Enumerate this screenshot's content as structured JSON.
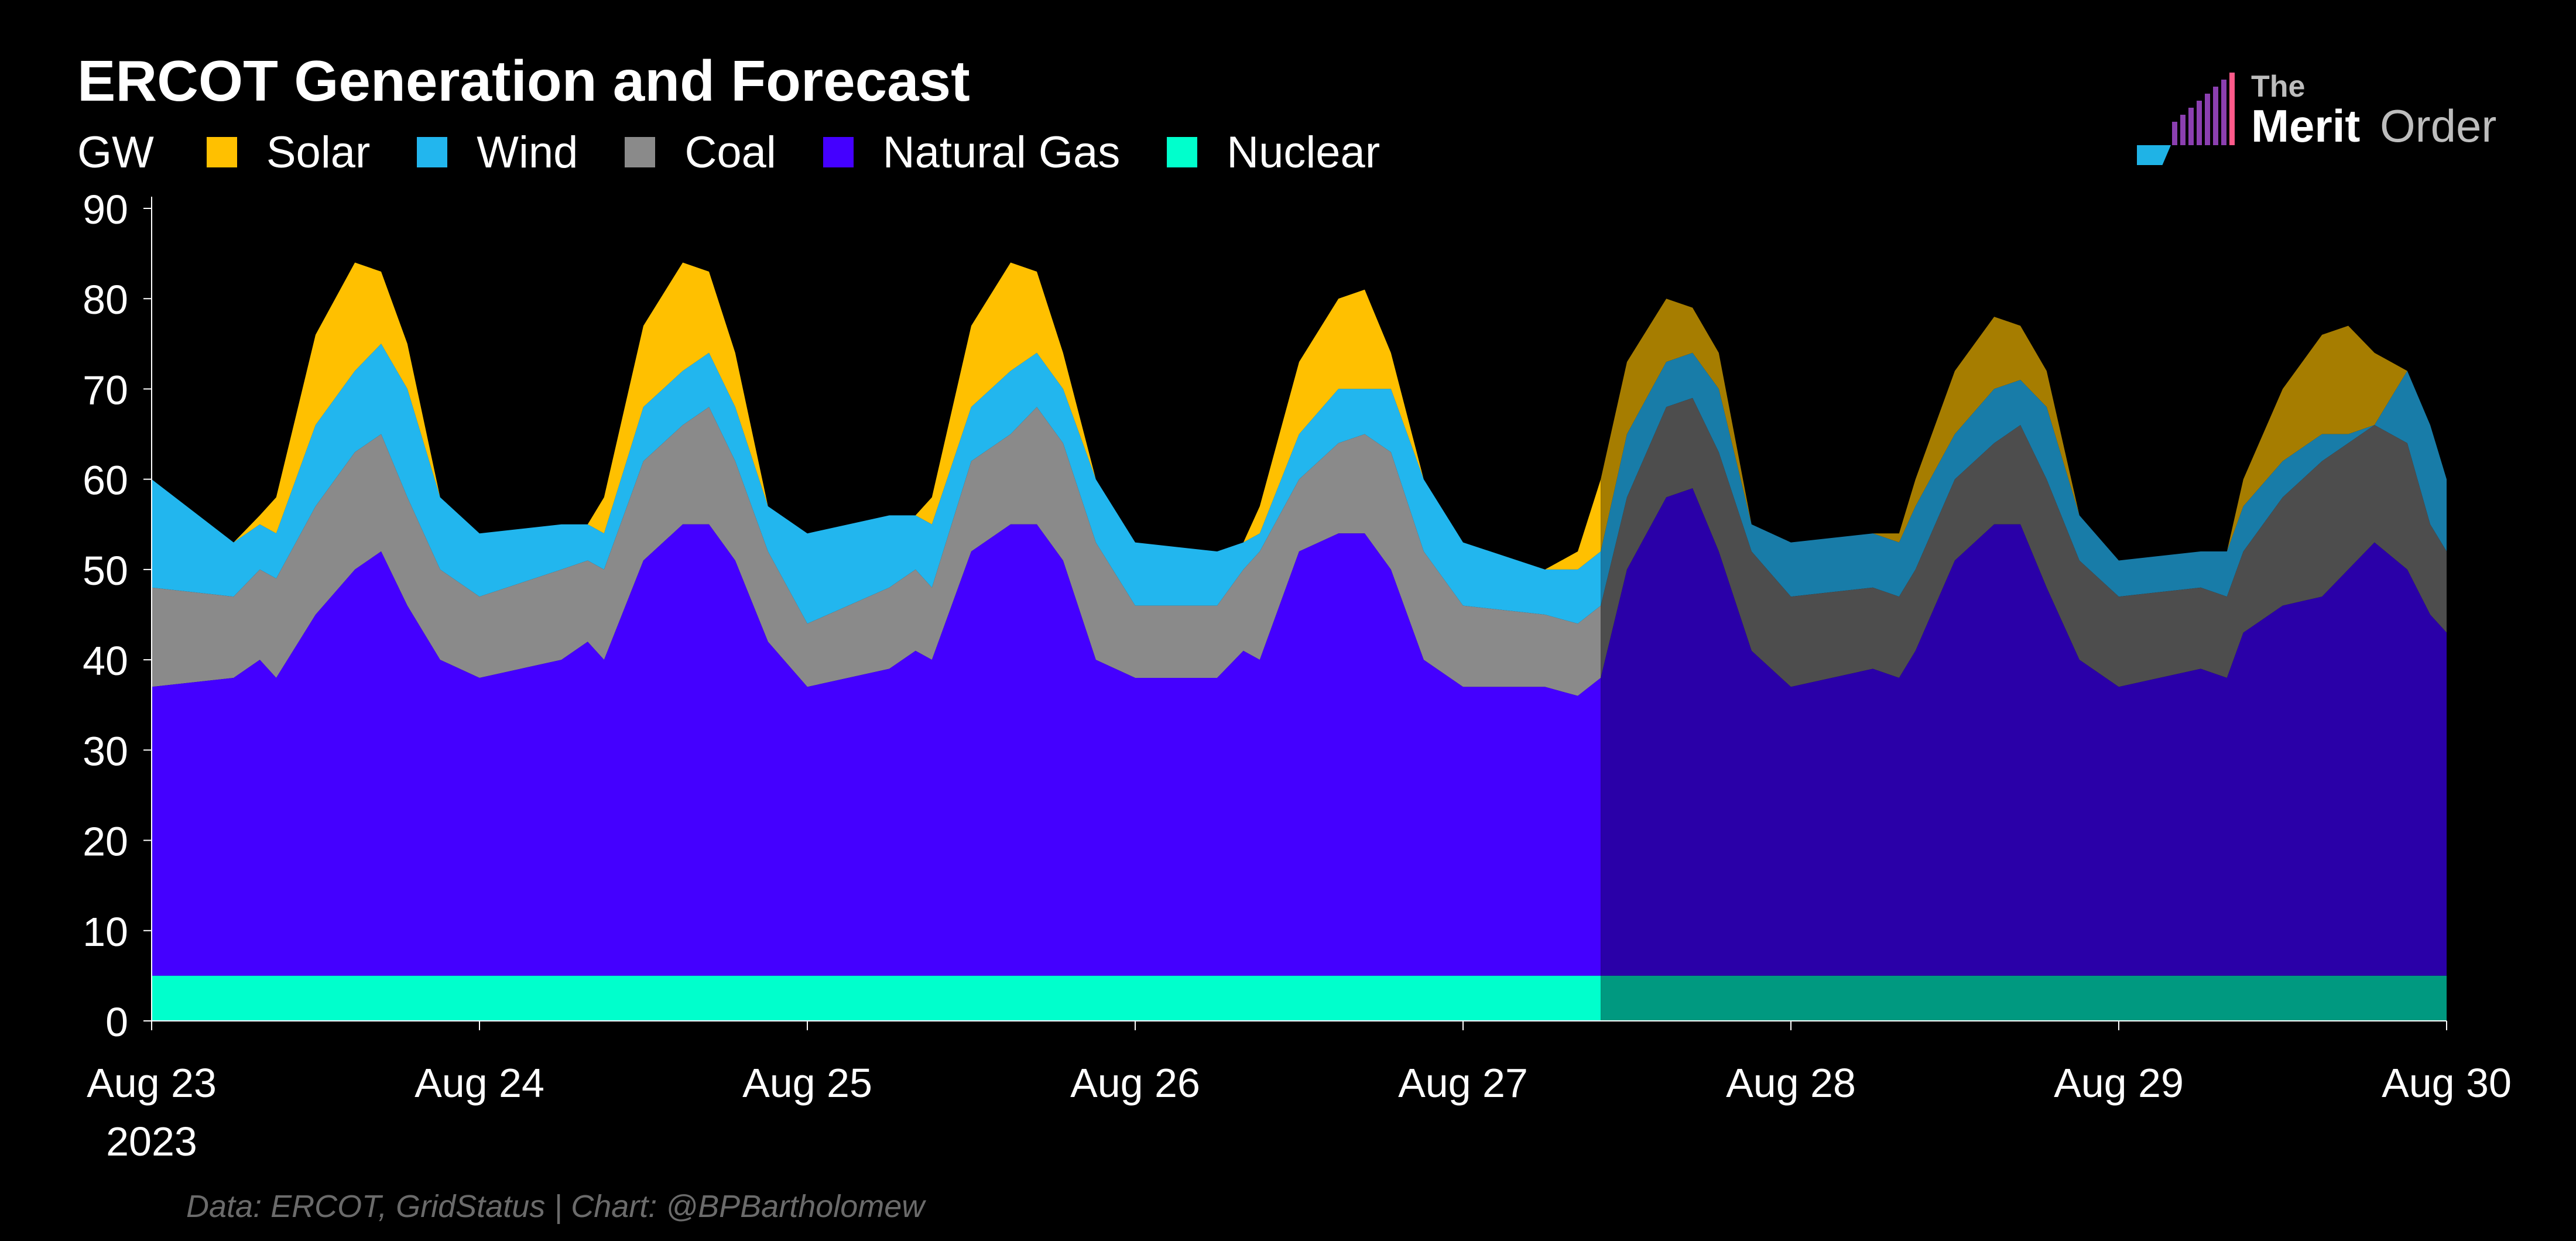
{
  "chart_data": {
    "type": "area",
    "title": "ERCOT Generation and Forecast",
    "ylabel": "GW",
    "ylim": [
      0,
      90
    ],
    "y_ticks": [
      "0",
      "10",
      "20",
      "30",
      "40",
      "50",
      "60",
      "70",
      "80",
      "90"
    ],
    "x_ticks": [
      "Aug 23",
      "Aug 24",
      "Aug 25",
      "Aug 26",
      "Aug 27",
      "Aug 28",
      "Aug 29",
      "Aug 30"
    ],
    "year_label": "2023",
    "xlim_days": [
      0,
      7
    ],
    "forecast_start_day": 4.42,
    "series": [
      {
        "name": "Nuclear",
        "color": "#00ffcc",
        "forecast_color": "#009980"
      },
      {
        "name": "Natural Gas",
        "color": "#4400ff",
        "forecast_color": "#2a00a8"
      },
      {
        "name": "Coal",
        "color": "#8a8a8a",
        "forecast_color": "#4d4d4d"
      },
      {
        "name": "Wind",
        "color": "#22b6ee",
        "forecast_color": "#187ca8"
      },
      {
        "name": "Solar",
        "color": "#ffc000",
        "forecast_color": "#a67d00"
      }
    ],
    "stacked_tops": {
      "days": [
        0,
        0.25,
        0.33,
        0.38,
        0.5,
        0.62,
        0.7,
        0.78,
        0.88,
        1.0,
        1.25,
        1.33,
        1.38,
        1.5,
        1.62,
        1.7,
        1.78,
        1.88,
        2.0,
        2.25,
        2.33,
        2.38,
        2.5,
        2.62,
        2.7,
        2.78,
        2.88,
        3.0,
        3.25,
        3.33,
        3.38,
        3.5,
        3.62,
        3.7,
        3.78,
        3.88,
        4.0,
        4.25,
        4.35,
        4.42,
        4.5,
        4.62,
        4.7,
        4.78,
        4.88,
        5.0,
        5.25,
        5.33,
        5.38,
        5.5,
        5.62,
        5.7,
        5.78,
        5.88,
        6.0,
        6.25,
        6.33,
        6.38,
        6.5,
        6.62,
        6.7,
        6.78,
        6.88,
        6.95,
        7.0
      ],
      "nuclear": [
        5,
        5,
        5,
        5,
        5,
        5,
        5,
        5,
        5,
        5,
        5,
        5,
        5,
        5,
        5,
        5,
        5,
        5,
        5,
        5,
        5,
        5,
        5,
        5,
        5,
        5,
        5,
        5,
        5,
        5,
        5,
        5,
        5,
        5,
        5,
        5,
        5,
        5,
        5,
        5,
        5,
        5,
        5,
        5,
        5,
        5,
        5,
        5,
        5,
        5,
        5,
        5,
        5,
        5,
        5,
        5,
        5,
        5,
        5,
        5,
        5,
        5,
        5,
        5,
        5
      ],
      "gas": [
        37,
        38,
        40,
        38,
        45,
        50,
        52,
        46,
        40,
        38,
        40,
        42,
        40,
        51,
        55,
        55,
        51,
        42,
        37,
        39,
        41,
        40,
        52,
        55,
        55,
        51,
        40,
        38,
        38,
        41,
        40,
        52,
        54,
        54,
        50,
        40,
        37,
        37,
        36,
        38,
        50,
        58,
        59,
        52,
        41,
        37,
        39,
        38,
        41,
        51,
        55,
        55,
        48,
        40,
        37,
        39,
        38,
        43,
        46,
        47,
        50,
        53,
        50,
        45,
        43
      ],
      "coal": [
        48,
        47,
        50,
        49,
        57,
        63,
        65,
        58,
        50,
        47,
        50,
        51,
        50,
        62,
        66,
        68,
        62,
        52,
        44,
        48,
        50,
        48,
        62,
        65,
        68,
        64,
        53,
        46,
        46,
        50,
        52,
        60,
        64,
        65,
        63,
        52,
        46,
        45,
        44,
        46,
        58,
        68,
        69,
        63,
        52,
        47,
        48,
        47,
        50,
        60,
        64,
        66,
        60,
        51,
        47,
        48,
        47,
        52,
        58,
        62,
        64,
        66,
        64,
        55,
        52
      ],
      "wind": [
        60,
        53,
        55,
        54,
        66,
        72,
        75,
        70,
        58,
        54,
        55,
        55,
        54,
        68,
        72,
        74,
        68,
        57,
        54,
        56,
        56,
        55,
        68,
        72,
        74,
        70,
        60,
        53,
        52,
        53,
        54,
        65,
        70,
        70,
        70,
        60,
        53,
        50,
        50,
        52,
        65,
        73,
        74,
        70,
        55,
        53,
        54,
        53,
        57,
        65,
        70,
        71,
        68,
        56,
        51,
        52,
        52,
        57,
        62,
        65,
        65,
        66,
        72,
        66,
        60
      ],
      "solar": [
        60,
        53,
        56,
        58,
        76,
        84,
        83,
        75,
        58,
        54,
        55,
        55,
        58,
        77,
        84,
        83,
        74,
        57,
        54,
        56,
        56,
        58,
        77,
        84,
        83,
        74,
        60,
        53,
        52,
        53,
        57,
        73,
        80,
        81,
        74,
        60,
        53,
        50,
        52,
        60,
        73,
        80,
        79,
        74,
        55,
        53,
        54,
        54,
        60,
        72,
        78,
        77,
        72,
        56,
        51,
        52,
        52,
        60,
        70,
        76,
        77,
        74,
        72,
        66,
        60
      ]
    },
    "grid": false,
    "legend_position": "top-left"
  },
  "logo": {
    "line1": "The",
    "line2a": "Merit",
    "line2b": "Order"
  },
  "source_text": "Data: ERCOT, GridStatus | Chart: @BPBartholomew"
}
